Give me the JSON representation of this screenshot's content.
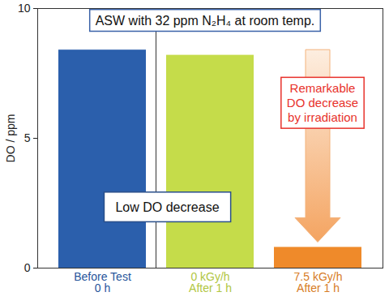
{
  "chart_data": {
    "type": "bar",
    "title": "ASW with 32 ppm N₂H₄ at room temp.",
    "categories": [
      "Before Test\n0 h",
      "0 kGy/h\nAfter 1 h",
      "7.5 kGy/h\nAfter 1 h"
    ],
    "values": [
      8.4,
      8.2,
      0.8
    ],
    "colors": [
      "#2b5fac",
      "#c5dc4a",
      "#ef8a2a"
    ],
    "y_label": "DO / ppm",
    "ylim": [
      0,
      10
    ],
    "yticks": [
      0,
      5,
      10
    ],
    "annotations": [
      "Low DO decrease",
      "Remarkable\nDO decrease\nby irradiation"
    ]
  }
}
